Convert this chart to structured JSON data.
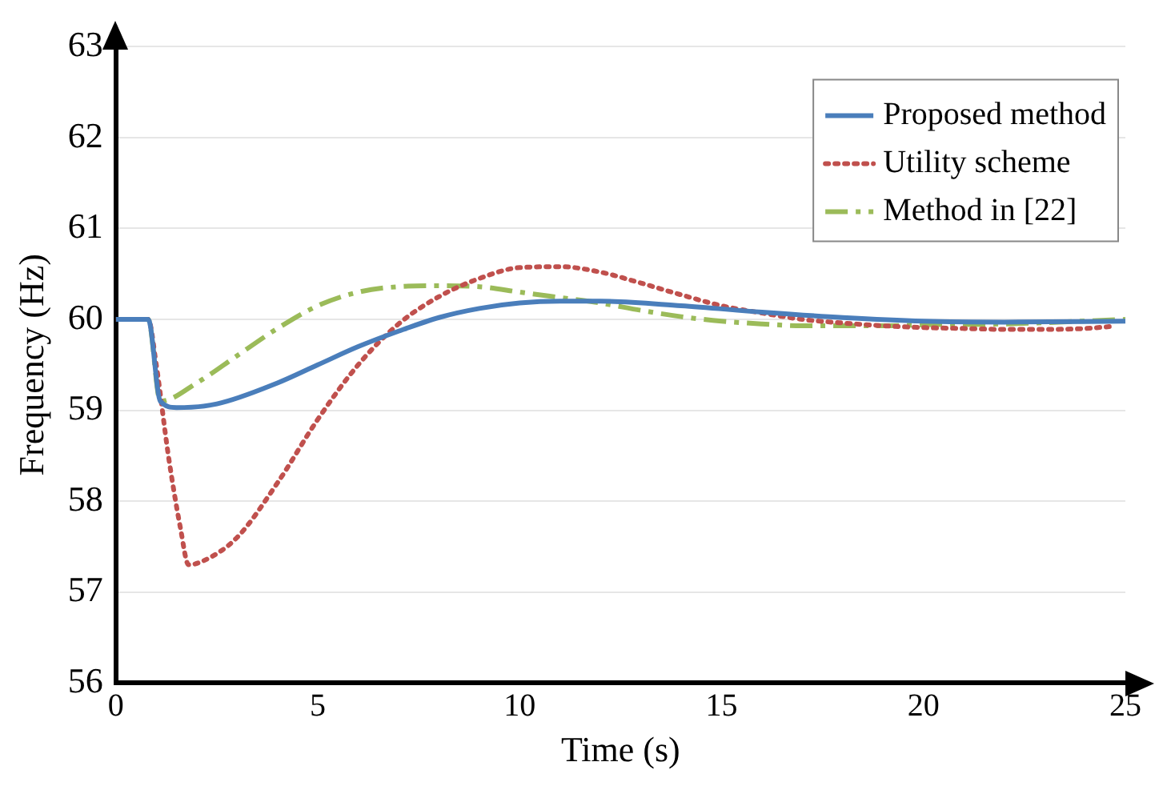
{
  "chart_data": {
    "type": "line",
    "xlabel": "Time (s)",
    "ylabel": "Frequency (Hz)",
    "xlim": [
      0,
      25
    ],
    "xticks": [
      0,
      5,
      10,
      15,
      20,
      25
    ],
    "ylim": [
      56,
      63
    ],
    "yticks": [
      56,
      57,
      58,
      59,
      60,
      61,
      62,
      63
    ],
    "grid": "y",
    "legend": "top right",
    "marker": "none",
    "series": [
      {
        "name": "Proposed method",
        "color": "#4a7ebb",
        "line_style": "solid",
        "x": [
          0,
          0.8,
          1.1,
          1.5,
          2.5,
          4,
          5,
          6,
          7,
          8,
          9,
          10,
          11,
          12,
          14,
          16,
          18,
          20,
          22,
          25
        ],
        "values": [
          60,
          60,
          59.1,
          59.03,
          59.07,
          59.3,
          59.5,
          59.7,
          59.87,
          60.02,
          60.12,
          60.18,
          60.2,
          60.2,
          60.15,
          60.08,
          60.02,
          59.98,
          59.97,
          59.98
        ]
      },
      {
        "name": "Utility scheme",
        "color": "#c0504d",
        "line_style": "dotted",
        "x": [
          0,
          0.8,
          1,
          1.3,
          1.6,
          1.8,
          2.2,
          3,
          4,
          5,
          6,
          7,
          8,
          9,
          10,
          11,
          12,
          13,
          14,
          15,
          16,
          17,
          18,
          19,
          20,
          21,
          22,
          23,
          24,
          24.6
        ],
        "values": [
          60,
          60,
          59.5,
          58.5,
          57.7,
          57.3,
          57.35,
          57.6,
          58.2,
          58.9,
          59.5,
          59.95,
          60.25,
          60.45,
          60.57,
          60.58,
          60.52,
          60.4,
          60.27,
          60.15,
          60.07,
          60,
          59.96,
          59.93,
          59.91,
          59.9,
          59.89,
          59.89,
          59.9,
          59.92
        ]
      },
      {
        "name": "Method in [22]",
        "color": "#9bbb59",
        "line_style": "dashed",
        "x": [
          0,
          0.8,
          1.1,
          2,
          3,
          4,
          5,
          6,
          7,
          8,
          9,
          10,
          11,
          12,
          13,
          14,
          15,
          16,
          17,
          18,
          19,
          20,
          22,
          25
        ],
        "values": [
          60,
          60,
          59.1,
          59.3,
          59.6,
          59.9,
          60.15,
          60.3,
          60.36,
          60.37,
          60.36,
          60.3,
          60.24,
          60.18,
          60.1,
          60.03,
          59.98,
          59.95,
          59.93,
          59.93,
          59.93,
          59.94,
          59.95,
          60
        ]
      }
    ]
  }
}
